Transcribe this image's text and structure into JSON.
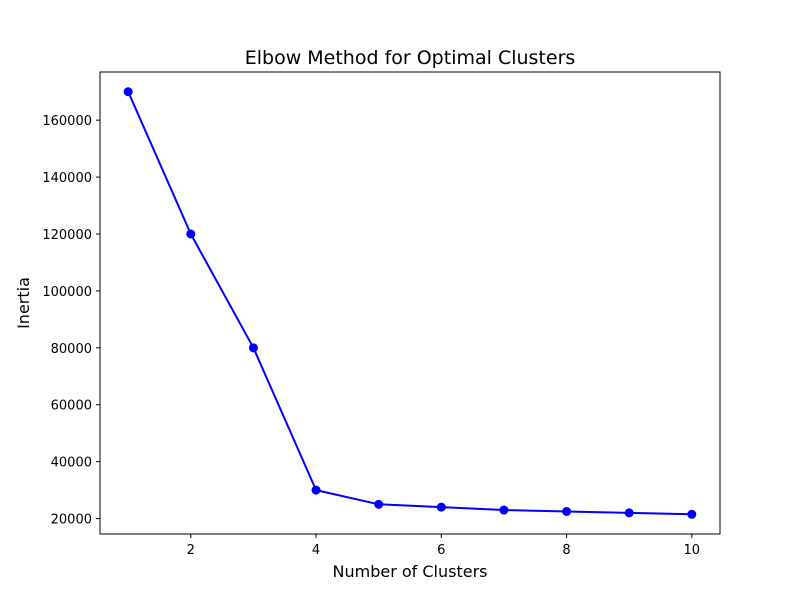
{
  "chart_data": {
    "type": "line",
    "title": "Elbow Method for Optimal Clusters",
    "xlabel": "Number of Clusters",
    "ylabel": "Inertia",
    "x": [
      1,
      2,
      3,
      4,
      5,
      6,
      7,
      8,
      9,
      10
    ],
    "series": [
      {
        "values": [
          170000,
          120000,
          80000,
          30000,
          25000,
          24000,
          23000,
          22500,
          22000,
          21500
        ],
        "color": "#0000ff",
        "marker": "circle"
      }
    ],
    "xlim": [
      0.55,
      10.45
    ],
    "ylim": [
      14575,
      176925
    ],
    "xticks": [
      2,
      4,
      6,
      8,
      10
    ],
    "yticks": [
      20000,
      40000,
      60000,
      80000,
      100000,
      120000,
      140000,
      160000
    ],
    "grid": false,
    "legend": "none"
  }
}
